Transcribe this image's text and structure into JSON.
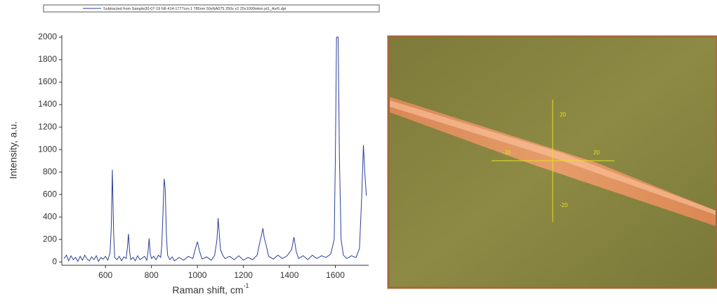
{
  "chart_data": {
    "type": "line",
    "legend_text": "Subtracted from Sample30-07-19 N6 414-1777cm-1 785nm 50xNA075 250s x2 25x1000mkm pt1_Avr5.dpt",
    "x_label": "Raman shift, cm",
    "x_label_sup": "-1",
    "y_label": "Intensity, a.u.",
    "xlim": [
      410,
      1745
    ],
    "xticks": [
      600,
      800,
      1000,
      1200,
      1400,
      1600
    ],
    "ylim": [
      -30,
      2000
    ],
    "yticks": [
      0,
      200,
      400,
      600,
      800,
      1000,
      1200,
      1400,
      1600,
      1800,
      2000
    ],
    "x": [
      420,
      430,
      440,
      450,
      460,
      470,
      480,
      490,
      500,
      510,
      520,
      530,
      540,
      550,
      560,
      570,
      580,
      590,
      600,
      610,
      620,
      625,
      630,
      635,
      640,
      650,
      660,
      670,
      680,
      690,
      695,
      700,
      705,
      710,
      720,
      730,
      740,
      750,
      760,
      770,
      780,
      785,
      790,
      795,
      800,
      810,
      820,
      830,
      840,
      845,
      850,
      855,
      860,
      865,
      870,
      880,
      890,
      900,
      920,
      940,
      960,
      980,
      990,
      1000,
      1010,
      1020,
      1040,
      1060,
      1075,
      1085,
      1090,
      1095,
      1100,
      1110,
      1120,
      1140,
      1160,
      1180,
      1200,
      1220,
      1240,
      1260,
      1270,
      1280,
      1285,
      1290,
      1300,
      1310,
      1330,
      1350,
      1370,
      1390,
      1410,
      1420,
      1430,
      1440,
      1460,
      1480,
      1500,
      1520,
      1540,
      1560,
      1580,
      1595,
      1600,
      1605,
      1612,
      1618,
      1625,
      1635,
      1650,
      1670,
      1690,
      1705,
      1715,
      1722,
      1728,
      1735
    ],
    "series": [
      {
        "name": "Subtracted from Sample30-07-19 N6 414-1777cm-1 785nm 50xNA075 250s x2 25x1000mkm pt1_Avr5.dpt",
        "color": "#2b3f9a",
        "values": [
          30,
          60,
          10,
          55,
          20,
          40,
          5,
          50,
          15,
          60,
          25,
          10,
          45,
          20,
          55,
          5,
          40,
          25,
          50,
          15,
          80,
          300,
          820,
          280,
          40,
          20,
          50,
          10,
          45,
          30,
          120,
          250,
          90,
          20,
          40,
          10,
          55,
          20,
          35,
          50,
          15,
          90,
          210,
          70,
          30,
          50,
          20,
          60,
          40,
          150,
          420,
          740,
          650,
          250,
          60,
          20,
          45,
          10,
          40,
          15,
          50,
          30,
          110,
          180,
          90,
          25,
          45,
          15,
          60,
          200,
          390,
          260,
          110,
          60,
          30,
          50,
          20,
          55,
          15,
          40,
          20,
          60,
          160,
          250,
          300,
          220,
          140,
          50,
          25,
          60,
          30,
          55,
          110,
          220,
          90,
          30,
          55,
          20,
          60,
          30,
          55,
          40,
          70,
          200,
          900,
          2000,
          2000,
          900,
          200,
          60,
          30,
          55,
          40,
          120,
          600,
          1040,
          800,
          590
        ]
      }
    ]
  },
  "image": {
    "scale_labels": [
      "20",
      "-20",
      "20",
      "-20"
    ]
  }
}
